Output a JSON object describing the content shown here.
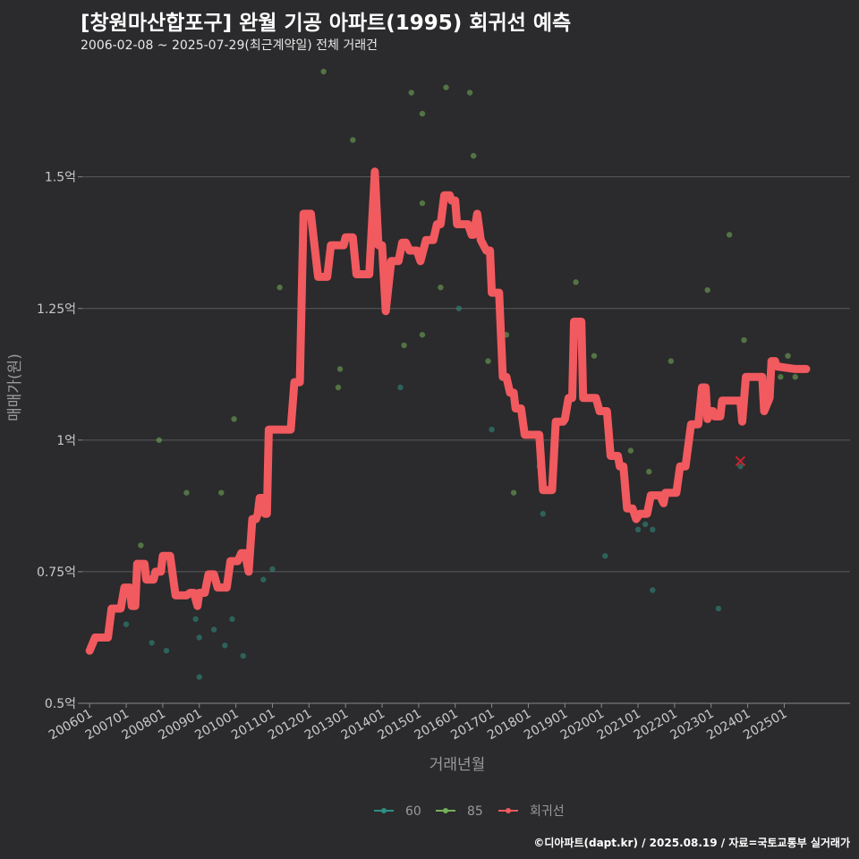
{
  "title": "[창원마산합포구] 완월 기공 아파트(1995) 회귀선 예측",
  "subtitle": "2006-02-08 ~ 2025-07-29(최근계약일) 전체 거래건",
  "footer": "©디아파트(dapt.kr) / 2025.08.19 / 자료=국토교통부 실거래가",
  "colors": {
    "background": "#2b2a2c",
    "grid": "#5b5a5c",
    "regression": "#f15a5f",
    "s60": "#2f8f83",
    "s85": "#74b15a",
    "marker": "#c9232d"
  },
  "chart_data": {
    "type": "scatter",
    "title": "[창원마산합포구] 완월 기공 아파트(1995) 회귀선 예측",
    "xlabel": "거래년월",
    "ylabel": "매매가(원)",
    "xlim": [
      2005.8,
      2026.8
    ],
    "ylim": [
      0.5,
      1.7
    ],
    "x_ticks": [
      {
        "v": 2006.0,
        "label": "200601"
      },
      {
        "v": 2007.0,
        "label": "200701"
      },
      {
        "v": 2008.0,
        "label": "200801"
      },
      {
        "v": 2009.0,
        "label": "200901"
      },
      {
        "v": 2010.0,
        "label": "201001"
      },
      {
        "v": 2011.0,
        "label": "201101"
      },
      {
        "v": 2012.0,
        "label": "201201"
      },
      {
        "v": 2013.0,
        "label": "201301"
      },
      {
        "v": 2014.0,
        "label": "201401"
      },
      {
        "v": 2015.0,
        "label": "201501"
      },
      {
        "v": 2016.0,
        "label": "201601"
      },
      {
        "v": 2017.0,
        "label": "201701"
      },
      {
        "v": 2018.0,
        "label": "201801"
      },
      {
        "v": 2019.0,
        "label": "201901"
      },
      {
        "v": 2020.0,
        "label": "202001"
      },
      {
        "v": 2021.0,
        "label": "202101"
      },
      {
        "v": 2022.0,
        "label": "202201"
      },
      {
        "v": 2023.0,
        "label": "202301"
      },
      {
        "v": 2024.0,
        "label": "202401"
      },
      {
        "v": 2025.0,
        "label": "202501"
      }
    ],
    "y_ticks": [
      {
        "v": 0.5,
        "label": "0.5억"
      },
      {
        "v": 0.75,
        "label": "0.75억"
      },
      {
        "v": 1.0,
        "label": "1억"
      },
      {
        "v": 1.25,
        "label": "1.25억"
      },
      {
        "v": 1.5,
        "label": "1.5억"
      }
    ],
    "legend": [
      {
        "key": "60",
        "label": "60"
      },
      {
        "key": "85",
        "label": "85"
      },
      {
        "key": "reg",
        "label": "회귀선"
      }
    ],
    "series": [
      {
        "name": "60",
        "points": [
          [
            2007.0,
            0.65
          ],
          [
            2007.7,
            0.615
          ],
          [
            2008.1,
            0.6
          ],
          [
            2008.9,
            0.66
          ],
          [
            2009.0,
            0.55
          ],
          [
            2009.0,
            0.625
          ],
          [
            2009.4,
            0.64
          ],
          [
            2009.7,
            0.61
          ],
          [
            2009.9,
            0.66
          ],
          [
            2010.2,
            0.59
          ],
          [
            2010.75,
            0.735
          ],
          [
            2011.0,
            0.755
          ],
          [
            2014.5,
            1.1
          ],
          [
            2016.1,
            1.25
          ],
          [
            2017.0,
            1.02
          ],
          [
            2018.3,
            0.95
          ],
          [
            2018.4,
            0.86
          ],
          [
            2020.1,
            0.78
          ],
          [
            2021.0,
            0.83
          ],
          [
            2021.2,
            0.84
          ],
          [
            2021.4,
            0.715
          ],
          [
            2021.4,
            0.83
          ],
          [
            2023.2,
            0.68
          ],
          [
            2023.8,
            0.95
          ]
        ]
      },
      {
        "name": "85",
        "points": [
          [
            2007.4,
            0.8
          ],
          [
            2007.9,
            1.0
          ],
          [
            2008.65,
            0.9
          ],
          [
            2009.6,
            0.9
          ],
          [
            2009.95,
            1.04
          ],
          [
            2011.2,
            1.29
          ],
          [
            2012.4,
            1.7
          ],
          [
            2012.8,
            1.1
          ],
          [
            2012.85,
            1.135
          ],
          [
            2013.2,
            1.57
          ],
          [
            2014.6,
            1.18
          ],
          [
            2014.8,
            1.66
          ],
          [
            2015.1,
            1.62
          ],
          [
            2015.1,
            1.2
          ],
          [
            2015.1,
            1.45
          ],
          [
            2015.6,
            1.29
          ],
          [
            2015.75,
            1.67
          ],
          [
            2016.4,
            1.66
          ],
          [
            2016.5,
            1.54
          ],
          [
            2016.9,
            1.15
          ],
          [
            2017.4,
            1.2
          ],
          [
            2017.6,
            0.9
          ],
          [
            2019.3,
            1.3
          ],
          [
            2019.8,
            1.16
          ],
          [
            2020.8,
            0.98
          ],
          [
            2021.3,
            0.94
          ],
          [
            2021.9,
            1.15
          ],
          [
            2022.9,
            1.285
          ],
          [
            2023.5,
            1.39
          ],
          [
            2023.9,
            1.19
          ],
          [
            2024.9,
            1.12
          ],
          [
            2025.1,
            1.16
          ],
          [
            2025.3,
            1.12
          ]
        ]
      },
      {
        "name": "회귀선",
        "points": [
          [
            2006.0,
            0.6
          ],
          [
            2006.15,
            0.625
          ],
          [
            2006.5,
            0.625
          ],
          [
            2006.6,
            0.68
          ],
          [
            2006.85,
            0.68
          ],
          [
            2006.95,
            0.72
          ],
          [
            2007.1,
            0.72
          ],
          [
            2007.15,
            0.685
          ],
          [
            2007.25,
            0.685
          ],
          [
            2007.3,
            0.765
          ],
          [
            2007.5,
            0.765
          ],
          [
            2007.55,
            0.735
          ],
          [
            2007.75,
            0.735
          ],
          [
            2007.8,
            0.75
          ],
          [
            2007.95,
            0.75
          ],
          [
            2008.0,
            0.78
          ],
          [
            2008.2,
            0.78
          ],
          [
            2008.35,
            0.705
          ],
          [
            2008.65,
            0.705
          ],
          [
            2008.75,
            0.71
          ],
          [
            2008.85,
            0.71
          ],
          [
            2008.95,
            0.685
          ],
          [
            2009.0,
            0.71
          ],
          [
            2009.15,
            0.71
          ],
          [
            2009.25,
            0.745
          ],
          [
            2009.4,
            0.745
          ],
          [
            2009.5,
            0.72
          ],
          [
            2009.75,
            0.72
          ],
          [
            2009.85,
            0.77
          ],
          [
            2010.05,
            0.77
          ],
          [
            2010.15,
            0.785
          ],
          [
            2010.25,
            0.785
          ],
          [
            2010.35,
            0.75
          ],
          [
            2010.45,
            0.85
          ],
          [
            2010.55,
            0.85
          ],
          [
            2010.6,
            0.86
          ],
          [
            2010.65,
            0.89
          ],
          [
            2010.75,
            0.89
          ],
          [
            2010.8,
            0.86
          ],
          [
            2010.85,
            0.86
          ],
          [
            2010.9,
            1.02
          ],
          [
            2011.5,
            1.02
          ],
          [
            2011.6,
            1.11
          ],
          [
            2011.75,
            1.11
          ],
          [
            2011.85,
            1.43
          ],
          [
            2012.05,
            1.43
          ],
          [
            2012.25,
            1.31
          ],
          [
            2012.5,
            1.31
          ],
          [
            2012.6,
            1.37
          ],
          [
            2012.95,
            1.37
          ],
          [
            2013.0,
            1.385
          ],
          [
            2013.2,
            1.385
          ],
          [
            2013.3,
            1.315
          ],
          [
            2013.65,
            1.315
          ],
          [
            2013.8,
            1.51
          ],
          [
            2013.9,
            1.37
          ],
          [
            2014.0,
            1.37
          ],
          [
            2014.1,
            1.245
          ],
          [
            2014.25,
            1.34
          ],
          [
            2014.45,
            1.34
          ],
          [
            2014.55,
            1.375
          ],
          [
            2014.65,
            1.375
          ],
          [
            2014.75,
            1.36
          ],
          [
            2014.95,
            1.36
          ],
          [
            2015.05,
            1.34
          ],
          [
            2015.2,
            1.38
          ],
          [
            2015.4,
            1.38
          ],
          [
            2015.5,
            1.41
          ],
          [
            2015.6,
            1.41
          ],
          [
            2015.7,
            1.465
          ],
          [
            2015.85,
            1.465
          ],
          [
            2015.9,
            1.455
          ],
          [
            2016.0,
            1.455
          ],
          [
            2016.05,
            1.41
          ],
          [
            2016.35,
            1.41
          ],
          [
            2016.45,
            1.39
          ],
          [
            2016.5,
            1.39
          ],
          [
            2016.6,
            1.43
          ],
          [
            2016.7,
            1.38
          ],
          [
            2016.85,
            1.36
          ],
          [
            2016.95,
            1.36
          ],
          [
            2017.0,
            1.28
          ],
          [
            2017.2,
            1.28
          ],
          [
            2017.3,
            1.12
          ],
          [
            2017.4,
            1.12
          ],
          [
            2017.5,
            1.09
          ],
          [
            2017.6,
            1.09
          ],
          [
            2017.65,
            1.06
          ],
          [
            2017.8,
            1.06
          ],
          [
            2017.9,
            1.01
          ],
          [
            2018.2,
            1.01
          ],
          [
            2018.3,
            1.01
          ],
          [
            2018.4,
            0.905
          ],
          [
            2018.65,
            0.905
          ],
          [
            2018.75,
            1.035
          ],
          [
            2018.95,
            1.035
          ],
          [
            2019.0,
            1.04
          ],
          [
            2019.1,
            1.08
          ],
          [
            2019.2,
            1.08
          ],
          [
            2019.25,
            1.225
          ],
          [
            2019.45,
            1.225
          ],
          [
            2019.5,
            1.08
          ],
          [
            2019.85,
            1.08
          ],
          [
            2019.95,
            1.055
          ],
          [
            2020.15,
            1.055
          ],
          [
            2020.25,
            0.97
          ],
          [
            2020.45,
            0.97
          ],
          [
            2020.5,
            0.95
          ],
          [
            2020.6,
            0.95
          ],
          [
            2020.7,
            0.87
          ],
          [
            2020.85,
            0.87
          ],
          [
            2020.95,
            0.85
          ],
          [
            2021.05,
            0.86
          ],
          [
            2021.25,
            0.86
          ],
          [
            2021.35,
            0.895
          ],
          [
            2021.6,
            0.895
          ],
          [
            2021.7,
            0.88
          ],
          [
            2021.75,
            0.9
          ],
          [
            2022.05,
            0.9
          ],
          [
            2022.15,
            0.95
          ],
          [
            2022.3,
            0.95
          ],
          [
            2022.45,
            1.03
          ],
          [
            2022.65,
            1.03
          ],
          [
            2022.75,
            1.1
          ],
          [
            2022.85,
            1.1
          ],
          [
            2022.9,
            1.04
          ],
          [
            2022.95,
            1.055
          ],
          [
            2023.05,
            1.055
          ],
          [
            2023.1,
            1.045
          ],
          [
            2023.25,
            1.045
          ],
          [
            2023.3,
            1.075
          ],
          [
            2023.8,
            1.075
          ],
          [
            2023.85,
            1.035
          ],
          [
            2023.95,
            1.12
          ],
          [
            2024.4,
            1.12
          ],
          [
            2024.45,
            1.055
          ],
          [
            2024.6,
            1.08
          ],
          [
            2024.65,
            1.15
          ],
          [
            2024.75,
            1.15
          ],
          [
            2024.8,
            1.14
          ],
          [
            2025.3,
            1.135
          ],
          [
            2025.6,
            1.135
          ]
        ]
      }
    ],
    "marker": {
      "x": 2023.8,
      "y": 0.96,
      "symbol": "x"
    }
  }
}
